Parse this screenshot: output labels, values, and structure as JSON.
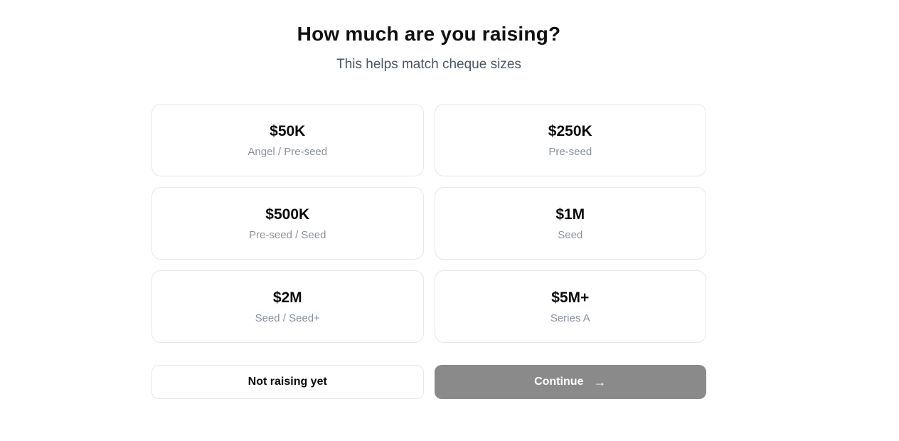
{
  "header": {
    "title": "How much are you raising?",
    "subtitle": "This helps match cheque sizes"
  },
  "options": [
    {
      "amount": "$50K",
      "stage": "Angel / Pre-seed"
    },
    {
      "amount": "$250K",
      "stage": "Pre-seed"
    },
    {
      "amount": "$500K",
      "stage": "Pre-seed / Seed"
    },
    {
      "amount": "$1M",
      "stage": "Seed"
    },
    {
      "amount": "$2M",
      "stage": "Seed / Seed+"
    },
    {
      "amount": "$5M+",
      "stage": "Series A"
    }
  ],
  "actions": {
    "not_raising_label": "Not raising yet",
    "continue_label": "Continue",
    "continue_arrow": "→"
  },
  "colors": {
    "continue_button_bg": "#8a8a8a",
    "continue_button_text": "#ffffff",
    "card_border": "#e7e7e7",
    "stage_text": "#8a919a",
    "subtitle_text": "#4b5563",
    "title_text": "#111111"
  }
}
